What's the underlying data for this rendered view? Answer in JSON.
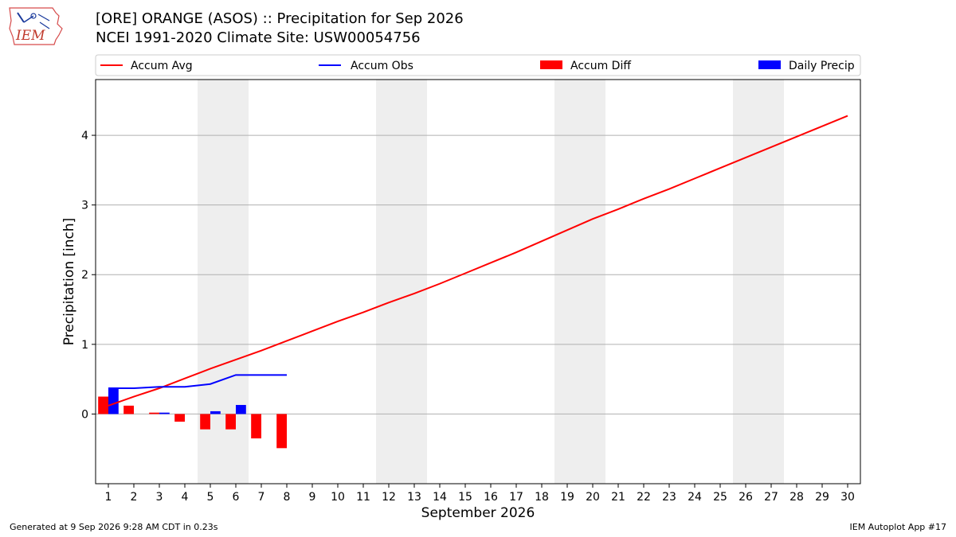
{
  "header": {
    "title_line1": "[ORE] ORANGE (ASOS) :: Precipitation for Sep 2026",
    "title_line2": "NCEI 1991-2020 Climate Site: USW00054756",
    "logo_text": "IEM"
  },
  "footer": {
    "generated": "Generated at 9 Sep 2026 9:28 AM CDT in 0.23s",
    "app": "IEM Autoplot App #17"
  },
  "colors": {
    "accum_avg": "#ff0000",
    "accum_obs": "#0000ff",
    "accum_diff": "#ff0000",
    "daily_precip": "#0000ff",
    "weekend_band": "#eeeeee",
    "grid": "#b0b0b0"
  },
  "chart_data": {
    "type": "bar",
    "xlabel": "September 2026",
    "ylabel": "Precipitation [inch]",
    "xlim": [
      0.5,
      30.5
    ],
    "ylim": [
      -1.0,
      4.8
    ],
    "yticks": [
      0,
      1,
      2,
      3,
      4
    ],
    "xticks": [
      1,
      2,
      3,
      4,
      5,
      6,
      7,
      8,
      9,
      10,
      11,
      12,
      13,
      14,
      15,
      16,
      17,
      18,
      19,
      20,
      21,
      22,
      23,
      24,
      25,
      26,
      27,
      28,
      29,
      30
    ],
    "grid": "y",
    "legend": {
      "placement": "top",
      "entries": [
        {
          "label": "Accum Avg",
          "style": "line",
          "color": "#ff0000"
        },
        {
          "label": "Accum Obs",
          "style": "line",
          "color": "#0000ff"
        },
        {
          "label": "Accum Diff",
          "style": "box",
          "color": "#ff0000"
        },
        {
          "label": "Daily Precip",
          "style": "box",
          "color": "#0000ff"
        }
      ]
    },
    "weekend_bands": [
      [
        5,
        6
      ],
      [
        12,
        13
      ],
      [
        19,
        20
      ],
      [
        26,
        27
      ]
    ],
    "series": [
      {
        "name": "Accum Avg",
        "type": "line",
        "x": [
          1,
          2,
          3,
          4,
          5,
          6,
          7,
          8,
          9,
          10,
          11,
          12,
          13,
          14,
          15,
          16,
          17,
          18,
          19,
          20,
          21,
          22,
          23,
          24,
          25,
          26,
          27,
          28,
          29,
          30
        ],
        "values": [
          0.12,
          0.25,
          0.37,
          0.51,
          0.65,
          0.78,
          0.91,
          1.05,
          1.19,
          1.33,
          1.46,
          1.6,
          1.73,
          1.87,
          2.02,
          2.17,
          2.32,
          2.48,
          2.64,
          2.8,
          2.94,
          3.09,
          3.23,
          3.38,
          3.53,
          3.68,
          3.83,
          3.98,
          4.13,
          4.28
        ]
      },
      {
        "name": "Accum Obs",
        "type": "line",
        "x": [
          1,
          2,
          3,
          4,
          5,
          6,
          7,
          8
        ],
        "values": [
          0.37,
          0.37,
          0.39,
          0.39,
          0.43,
          0.56,
          0.56,
          0.56
        ]
      },
      {
        "name": "Accum Diff",
        "type": "bar",
        "x": [
          1,
          2,
          3,
          4,
          5,
          6,
          7,
          8
        ],
        "values": [
          0.25,
          0.12,
          0.02,
          -0.11,
          -0.22,
          -0.22,
          -0.35,
          -0.49
        ]
      },
      {
        "name": "Daily Precip",
        "type": "bar",
        "x": [
          1,
          3,
          5,
          6
        ],
        "values": [
          0.37,
          0.02,
          0.04,
          0.13
        ]
      }
    ]
  }
}
